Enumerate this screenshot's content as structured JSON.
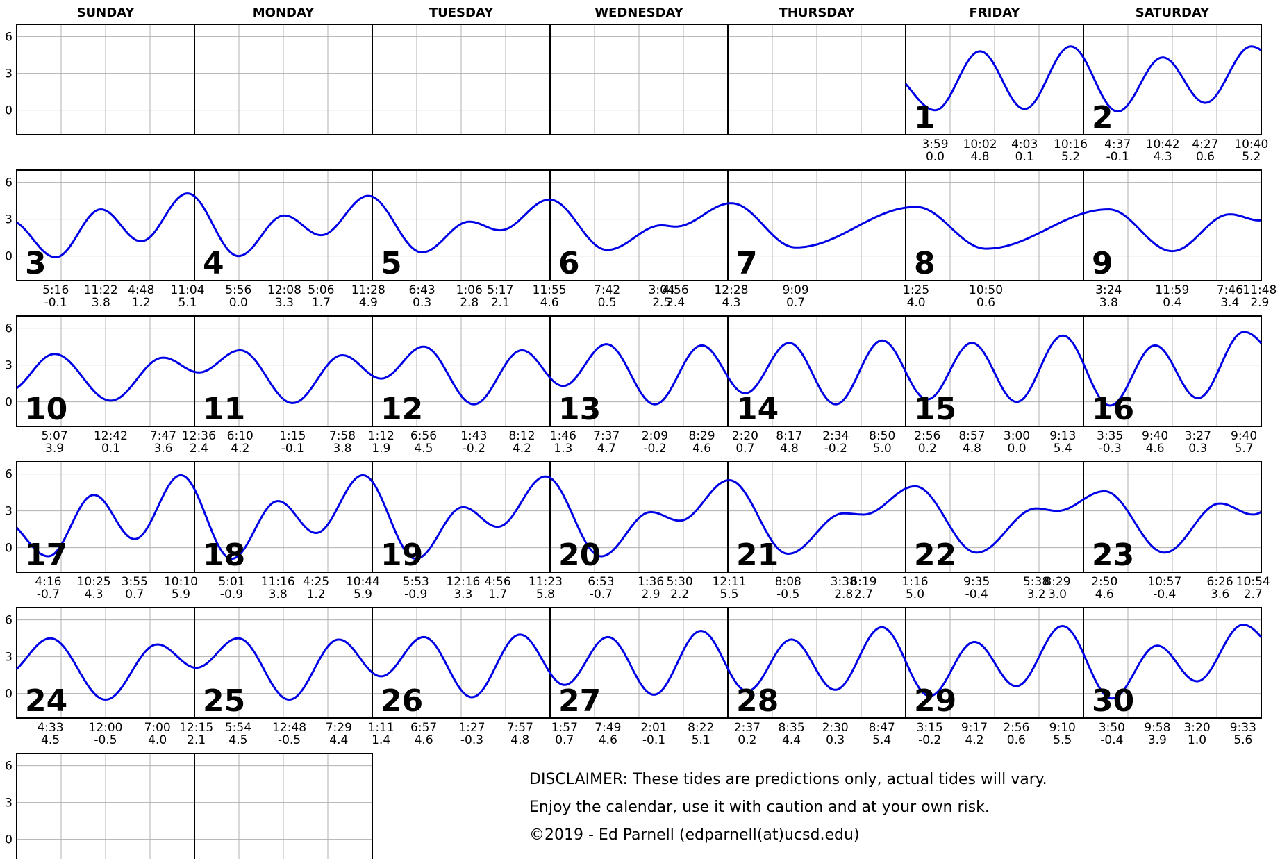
{
  "weekdays": [
    "SUNDAY",
    "MONDAY",
    "TUESDAY",
    "WEDNESDAY",
    "THURSDAY",
    "FRIDAY",
    "SATURDAY"
  ],
  "y_ticks": [
    "6",
    "3",
    "0"
  ],
  "colors": {
    "tide_line": "#0000e6",
    "grid": "#b0b0b0",
    "frame": "#000000"
  },
  "disclaimer": {
    "line1": "DISCLAIMER: These tides are predictions only, actual tides will vary.",
    "line2": "Enjoy the calendar, use it with caution and at your own risk.",
    "line3": "©2019 - Ed Parnell (edparnell(at)ucsd.edu)"
  },
  "chart_data": {
    "type": "line",
    "ylim": [
      -2,
      7
    ],
    "xlim_hours": [
      0,
      24
    ],
    "weeks": [
      {
        "cells": 7,
        "days": [
          {
            "col": 5,
            "day": "1",
            "tides": [
              {
                "time": "3:59",
                "height": "0.0"
              },
              {
                "time": "10:02",
                "height": "4.8"
              },
              {
                "time": "4:03",
                "height": "0.1"
              },
              {
                "time": "10:16",
                "height": "5.2"
              }
            ]
          },
          {
            "col": 6,
            "day": "2",
            "tides": [
              {
                "time": "4:37",
                "height": "-0.1"
              },
              {
                "time": "10:42",
                "height": "4.3"
              },
              {
                "time": "4:27",
                "height": "0.6"
              },
              {
                "time": "10:40",
                "height": "5.2"
              }
            ]
          }
        ]
      },
      {
        "cells": 7,
        "days": [
          {
            "col": 0,
            "day": "3",
            "tides": [
              {
                "time": "5:16",
                "height": "-0.1"
              },
              {
                "time": "11:22",
                "height": "3.8"
              },
              {
                "time": "4:48",
                "height": "1.2"
              },
              {
                "time": "11:04",
                "height": "5.1"
              }
            ]
          },
          {
            "col": 1,
            "day": "4",
            "tides": [
              {
                "time": "5:56",
                "height": "0.0"
              },
              {
                "time": "12:08",
                "height": "3.3"
              },
              {
                "time": "5:06",
                "height": "1.7"
              },
              {
                "time": "11:28",
                "height": "4.9"
              }
            ]
          },
          {
            "col": 2,
            "day": "5",
            "tides": [
              {
                "time": "6:43",
                "height": "0.3"
              },
              {
                "time": "1:06",
                "height": "2.8"
              },
              {
                "time": "5:17",
                "height": "2.1"
              },
              {
                "time": "11:55",
                "height": "4.6"
              }
            ]
          },
          {
            "col": 3,
            "day": "6",
            "tides": [
              {
                "time": "7:42",
                "height": "0.5"
              },
              {
                "time": "3:04",
                "height": "2.5"
              },
              {
                "time": "4:56",
                "height": "2.4"
              }
            ]
          },
          {
            "col": 4,
            "day": "7",
            "tides": [
              {
                "time": "12:28",
                "height": "4.3"
              },
              {
                "time": "9:09",
                "height": "0.7"
              }
            ]
          },
          {
            "col": 5,
            "day": "8",
            "tides": [
              {
                "time": "1:25",
                "height": "4.0"
              },
              {
                "time": "10:50",
                "height": "0.6"
              }
            ]
          },
          {
            "col": 6,
            "day": "9",
            "tides": [
              {
                "time": "3:24",
                "height": "3.8"
              },
              {
                "time": "11:59",
                "height": "0.4"
              },
              {
                "time": "7:46",
                "height": "3.4"
              },
              {
                "time": "11:48",
                "height": "2.9"
              }
            ]
          }
        ]
      },
      {
        "cells": 7,
        "days": [
          {
            "col": 0,
            "day": "10",
            "tides": [
              {
                "time": "5:07",
                "height": "3.9"
              },
              {
                "time": "12:42",
                "height": "0.1"
              },
              {
                "time": "7:47",
                "height": "3.6"
              }
            ]
          },
          {
            "col": 1,
            "day": "11",
            "tides": [
              {
                "time": "12:36",
                "height": "2.4"
              },
              {
                "time": "6:10",
                "height": "4.2"
              },
              {
                "time": "1:15",
                "height": "-0.1"
              },
              {
                "time": "7:58",
                "height": "3.8"
              }
            ]
          },
          {
            "col": 2,
            "day": "12",
            "tides": [
              {
                "time": "1:12",
                "height": "1.9"
              },
              {
                "time": "6:56",
                "height": "4.5"
              },
              {
                "time": "1:43",
                "height": "-0.2"
              },
              {
                "time": "8:12",
                "height": "4.2"
              }
            ]
          },
          {
            "col": 3,
            "day": "13",
            "tides": [
              {
                "time": "1:46",
                "height": "1.3"
              },
              {
                "time": "7:37",
                "height": "4.7"
              },
              {
                "time": "2:09",
                "height": "-0.2"
              },
              {
                "time": "8:29",
                "height": "4.6"
              }
            ]
          },
          {
            "col": 4,
            "day": "14",
            "tides": [
              {
                "time": "2:20",
                "height": "0.7"
              },
              {
                "time": "8:17",
                "height": "4.8"
              },
              {
                "time": "2:34",
                "height": "-0.2"
              },
              {
                "time": "8:50",
                "height": "5.0"
              }
            ]
          },
          {
            "col": 5,
            "day": "15",
            "tides": [
              {
                "time": "2:56",
                "height": "0.2"
              },
              {
                "time": "8:57",
                "height": "4.8"
              },
              {
                "time": "3:00",
                "height": "0.0"
              },
              {
                "time": "9:13",
                "height": "5.4"
              }
            ]
          },
          {
            "col": 6,
            "day": "16",
            "tides": [
              {
                "time": "3:35",
                "height": "-0.3"
              },
              {
                "time": "9:40",
                "height": "4.6"
              },
              {
                "time": "3:27",
                "height": "0.3"
              },
              {
                "time": "9:40",
                "height": "5.7"
              }
            ]
          }
        ]
      },
      {
        "cells": 7,
        "days": [
          {
            "col": 0,
            "day": "17",
            "tides": [
              {
                "time": "4:16",
                "height": "-0.7"
              },
              {
                "time": "10:25",
                "height": "4.3"
              },
              {
                "time": "3:55",
                "height": "0.7"
              },
              {
                "time": "10:10",
                "height": "5.9"
              }
            ]
          },
          {
            "col": 1,
            "day": "18",
            "tides": [
              {
                "time": "5:01",
                "height": "-0.9"
              },
              {
                "time": "11:16",
                "height": "3.8"
              },
              {
                "time": "4:25",
                "height": "1.2"
              },
              {
                "time": "10:44",
                "height": "5.9"
              }
            ]
          },
          {
            "col": 2,
            "day": "19",
            "tides": [
              {
                "time": "5:53",
                "height": "-0.9"
              },
              {
                "time": "12:16",
                "height": "3.3"
              },
              {
                "time": "4:56",
                "height": "1.7"
              },
              {
                "time": "11:23",
                "height": "5.8"
              }
            ]
          },
          {
            "col": 3,
            "day": "20",
            "tides": [
              {
                "time": "6:53",
                "height": "-0.7"
              },
              {
                "time": "1:36",
                "height": "2.9"
              },
              {
                "time": "5:30",
                "height": "2.2"
              }
            ]
          },
          {
            "col": 4,
            "day": "21",
            "tides": [
              {
                "time": "12:11",
                "height": "5.5"
              },
              {
                "time": "8:08",
                "height": "-0.5"
              },
              {
                "time": "3:38",
                "height": "2.8"
              },
              {
                "time": "6:19",
                "height": "2.7"
              }
            ]
          },
          {
            "col": 5,
            "day": "22",
            "tides": [
              {
                "time": "1:16",
                "height": "5.0"
              },
              {
                "time": "9:35",
                "height": "-0.4"
              },
              {
                "time": "5:38",
                "height": "3.2"
              },
              {
                "time": "8:29",
                "height": "3.0"
              }
            ]
          },
          {
            "col": 6,
            "day": "23",
            "tides": [
              {
                "time": "2:50",
                "height": "4.6"
              },
              {
                "time": "10:57",
                "height": "-0.4"
              },
              {
                "time": "6:26",
                "height": "3.6"
              },
              {
                "time": "10:54",
                "height": "2.7"
              }
            ]
          }
        ]
      },
      {
        "cells": 7,
        "days": [
          {
            "col": 0,
            "day": "24",
            "tides": [
              {
                "time": "4:33",
                "height": "4.5"
              },
              {
                "time": "12:00",
                "height": "-0.5"
              },
              {
                "time": "7:00",
                "height": "4.0"
              }
            ]
          },
          {
            "col": 1,
            "day": "25",
            "tides": [
              {
                "time": "12:15",
                "height": "2.1"
              },
              {
                "time": "5:54",
                "height": "4.5"
              },
              {
                "time": "12:48",
                "height": "-0.5"
              },
              {
                "time": "7:29",
                "height": "4.4"
              }
            ]
          },
          {
            "col": 2,
            "day": "26",
            "tides": [
              {
                "time": "1:11",
                "height": "1.4"
              },
              {
                "time": "6:57",
                "height": "4.6"
              },
              {
                "time": "1:27",
                "height": "-0.3"
              },
              {
                "time": "7:57",
                "height": "4.8"
              }
            ]
          },
          {
            "col": 3,
            "day": "27",
            "tides": [
              {
                "time": "1:57",
                "height": "0.7"
              },
              {
                "time": "7:49",
                "height": "4.6"
              },
              {
                "time": "2:01",
                "height": "-0.1"
              },
              {
                "time": "8:22",
                "height": "5.1"
              }
            ]
          },
          {
            "col": 4,
            "day": "28",
            "tides": [
              {
                "time": "2:37",
                "height": "0.2"
              },
              {
                "time": "8:35",
                "height": "4.4"
              },
              {
                "time": "2:30",
                "height": "0.3"
              },
              {
                "time": "8:47",
                "height": "5.4"
              }
            ]
          },
          {
            "col": 5,
            "day": "29",
            "tides": [
              {
                "time": "3:15",
                "height": "-0.2"
              },
              {
                "time": "9:17",
                "height": "4.2"
              },
              {
                "time": "2:56",
                "height": "0.6"
              },
              {
                "time": "9:10",
                "height": "5.5"
              }
            ]
          },
          {
            "col": 6,
            "day": "30",
            "tides": [
              {
                "time": "3:50",
                "height": "-0.4"
              },
              {
                "time": "9:58",
                "height": "3.9"
              },
              {
                "time": "3:20",
                "height": "1.0"
              },
              {
                "time": "9:33",
                "height": "5.6"
              }
            ]
          }
        ]
      },
      {
        "cells": 2,
        "days": []
      }
    ]
  }
}
